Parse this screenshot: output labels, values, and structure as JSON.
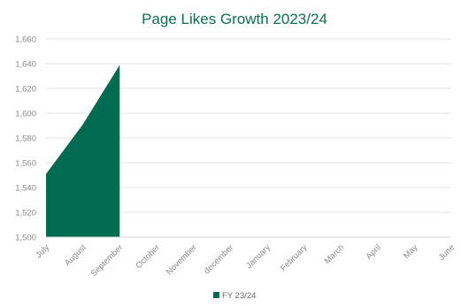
{
  "chart_data": {
    "type": "area",
    "title": "Page Likes Growth 2023/24",
    "categories": [
      "July",
      "August",
      "September",
      "October",
      "November",
      "december",
      "January",
      "February",
      "March",
      "April",
      "May",
      "June"
    ],
    "series": [
      {
        "name": "FY 23/24",
        "values": [
          1551,
          1591,
          1639,
          null,
          null,
          null,
          null,
          null,
          null,
          null,
          null,
          null
        ],
        "color": "#006b4f"
      }
    ],
    "ylim": [
      1500,
      1660
    ],
    "yticks": [
      1500,
      1520,
      1540,
      1560,
      1580,
      1600,
      1620,
      1640,
      1660
    ],
    "ytick_labels": [
      "1,500",
      "1,520",
      "1,540",
      "1,560",
      "1,580",
      "1,600",
      "1,620",
      "1,640",
      "1,660"
    ],
    "grid": true,
    "legend_position": "bottom"
  }
}
